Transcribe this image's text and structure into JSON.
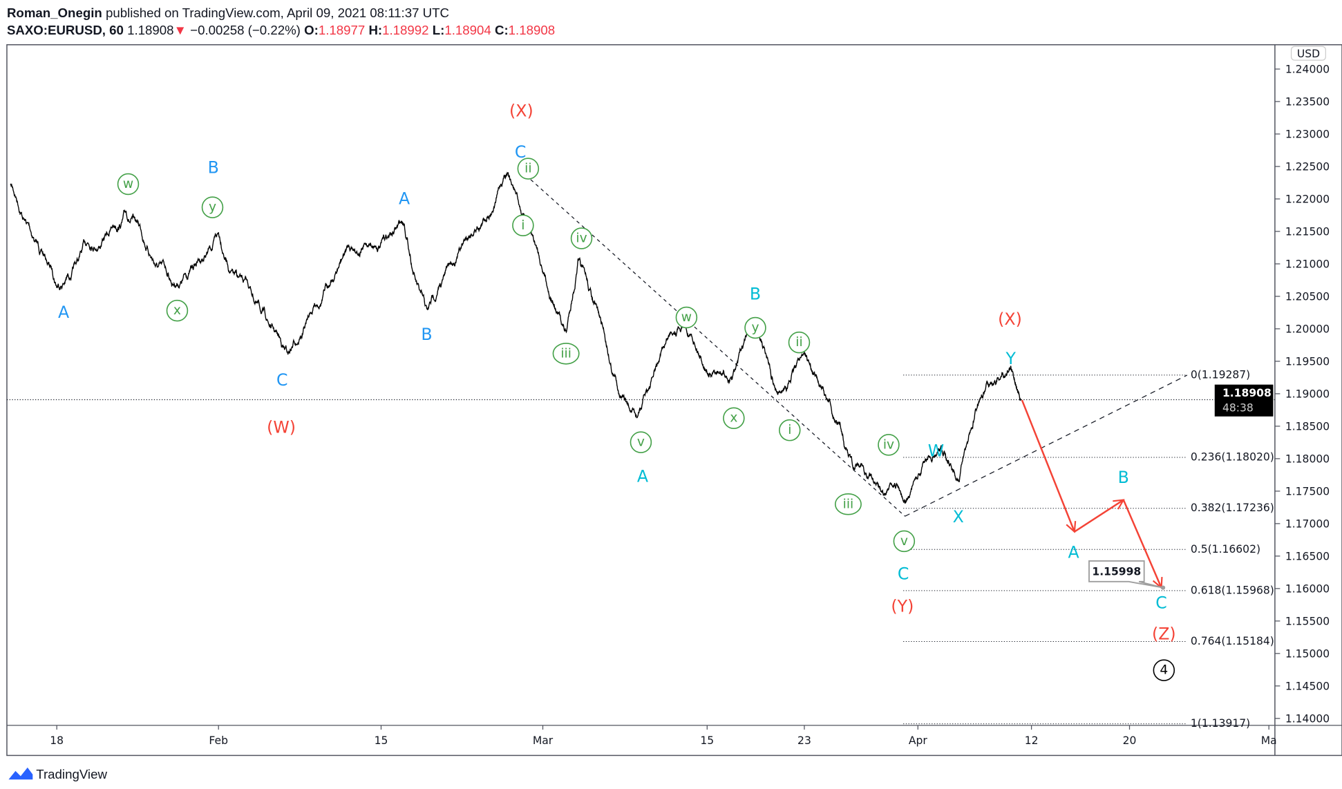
{
  "header": {
    "author": "Roman_Onegin",
    "published": "published on TradingView.com, April 09, 2021 08:11:37 UTC",
    "symbol": "SAXO:EURUSD, 60",
    "last": "1.18908",
    "change": "−0.00258 (−0.22%)",
    "o_label": "O:",
    "o": "1.18977",
    "h_label": "H:",
    "h": "1.18992",
    "l_label": "L:",
    "l": "1.18904",
    "c_label": "C:",
    "c": "1.18908"
  },
  "price_axis": {
    "currency": "USD",
    "last_price": "1.18908",
    "countdown": "48:38",
    "ticks": [
      "1.24000",
      "1.23500",
      "1.23000",
      "1.22500",
      "1.22000",
      "1.21500",
      "1.21000",
      "1.20500",
      "1.20000",
      "1.19500",
      "1.19000",
      "1.18500",
      "1.18000",
      "1.17500",
      "1.17000",
      "1.16500",
      "1.16000",
      "1.15500",
      "1.15000",
      "1.14500",
      "1.14000"
    ]
  },
  "time_axis": {
    "ticks": [
      {
        "label": "18",
        "date": "2021-01-18"
      },
      {
        "label": "Feb",
        "date": "2021-02-01"
      },
      {
        "label": "15",
        "date": "2021-02-15"
      },
      {
        "label": "Mar",
        "date": "2021-03-01"
      },
      {
        "label": "15",
        "date": "2021-03-15"
      },
      {
        "label": "23",
        "date": "2021-03-23"
      },
      {
        "label": "Apr",
        "date": "2021-04-01"
      },
      {
        "label": "12",
        "date": "2021-04-12"
      },
      {
        "label": "20",
        "date": "2021-04-20"
      },
      {
        "label": "Ma",
        "date": "2021-05-01"
      }
    ]
  },
  "chart_data": {
    "type": "line",
    "title": "SAXO:EURUSD, 60",
    "ylim": [
      1.138,
      1.2425
    ],
    "grid": false,
    "colors": {
      "price": "#000000",
      "wave_blue": "#2196f3",
      "wave_cyan": "#00bcd4",
      "wave_green": "#43a047",
      "wave_red": "#f44336",
      "projection": "#f44336"
    },
    "series": [
      {
        "points": [
          [
            "2021-01-14",
            1.2221
          ],
          [
            "2021-01-18",
            1.2063
          ],
          [
            "2021-01-24",
            1.2181
          ],
          [
            "2021-01-28",
            1.2069
          ],
          [
            "2021-02-01",
            1.2148
          ],
          [
            "2021-02-07",
            1.1962
          ],
          [
            "2021-02-12",
            1.2122
          ],
          [
            "2021-02-17",
            1.2162
          ],
          [
            "2021-02-19",
            1.203
          ],
          [
            "2021-02-24",
            1.2168
          ],
          [
            "2021-02-26",
            1.2241
          ],
          [
            "2021-02-28",
            1.2148
          ],
          [
            "2021-03-03",
            1.1995
          ],
          [
            "2021-03-04",
            1.2108
          ],
          [
            "2021-03-07",
            1.1929
          ],
          [
            "2021-03-09",
            1.1863
          ],
          [
            "2021-03-13",
            1.2009
          ],
          [
            "2021-03-17",
            1.1923
          ],
          [
            "2021-03-19",
            1.2009
          ],
          [
            "2021-03-21",
            1.1903
          ],
          [
            "2021-03-23",
            1.1963
          ],
          [
            "2021-03-27",
            1.1784
          ],
          [
            "2021-03-31",
            1.1731
          ],
          [
            "2021-04-02",
            1.1804
          ],
          [
            "2021-04-05",
            1.1764
          ],
          [
            "2021-04-07",
            1.189
          ],
          [
            "2021-04-10",
            1.1943
          ],
          [
            "2021-04-11",
            1.18908
          ]
        ]
      }
    ],
    "last_price_line": 1.18908,
    "fibonacci": [
      {
        "label": "0(1.19287)",
        "value": 1.19287
      },
      {
        "label": "0.236(1.18020)",
        "value": 1.1802
      },
      {
        "label": "0.382(1.17236)",
        "value": 1.17236
      },
      {
        "label": "0.5(1.16602)",
        "value": 1.16602
      },
      {
        "label": "0.618(1.15968)",
        "value": 1.15968
      },
      {
        "label": "0.764(1.15184)",
        "value": 1.15184
      },
      {
        "label": "1(1.13917)",
        "value": 1.13917
      }
    ],
    "projection_callout": "1.15998",
    "wave_labels": {
      "blue": [
        "A",
        "B",
        "C",
        "A",
        "B",
        "C"
      ],
      "cyan": [
        "B",
        "A",
        "C",
        "W",
        "X",
        "Y",
        "A",
        "B",
        "C"
      ],
      "red": [
        "(X)",
        "(W)",
        "(X)",
        "(Y)",
        "(Z)"
      ],
      "green": [
        "w",
        "y",
        "x",
        "ii",
        "i",
        "iv",
        "iii",
        "w",
        "y",
        "ii",
        "x",
        "i",
        "v",
        "iv",
        "iii",
        "v"
      ],
      "black": [
        "4"
      ]
    }
  },
  "footer": {
    "brand": "TradingView"
  }
}
